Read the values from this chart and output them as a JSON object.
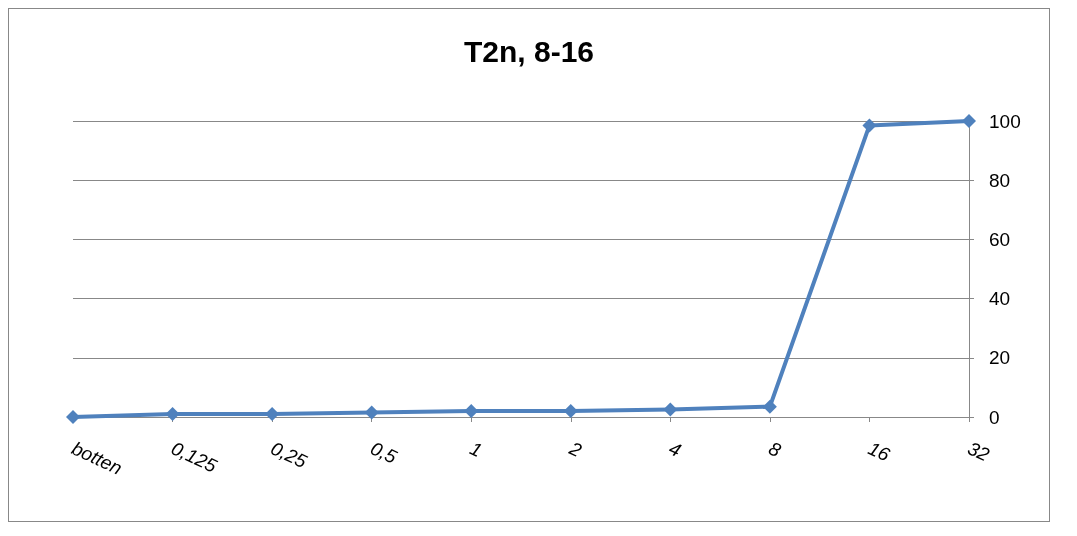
{
  "chart_data": {
    "type": "line",
    "title": "T2n, 8-16",
    "categories": [
      "botten",
      "0,125",
      "0,25",
      "0,5",
      "1",
      "2",
      "4",
      "8",
      "16",
      "32"
    ],
    "series": [
      {
        "color": "#4f81bd",
        "values": [
          0,
          1,
          1,
          1.5,
          2,
          2,
          2.5,
          3.5,
          98.5,
          100
        ]
      }
    ],
    "ylim": [
      0,
      100
    ],
    "yticks": [
      0,
      20,
      40,
      60,
      80,
      100
    ],
    "grid": "y",
    "marker": "diamond",
    "line_style": "solid"
  }
}
